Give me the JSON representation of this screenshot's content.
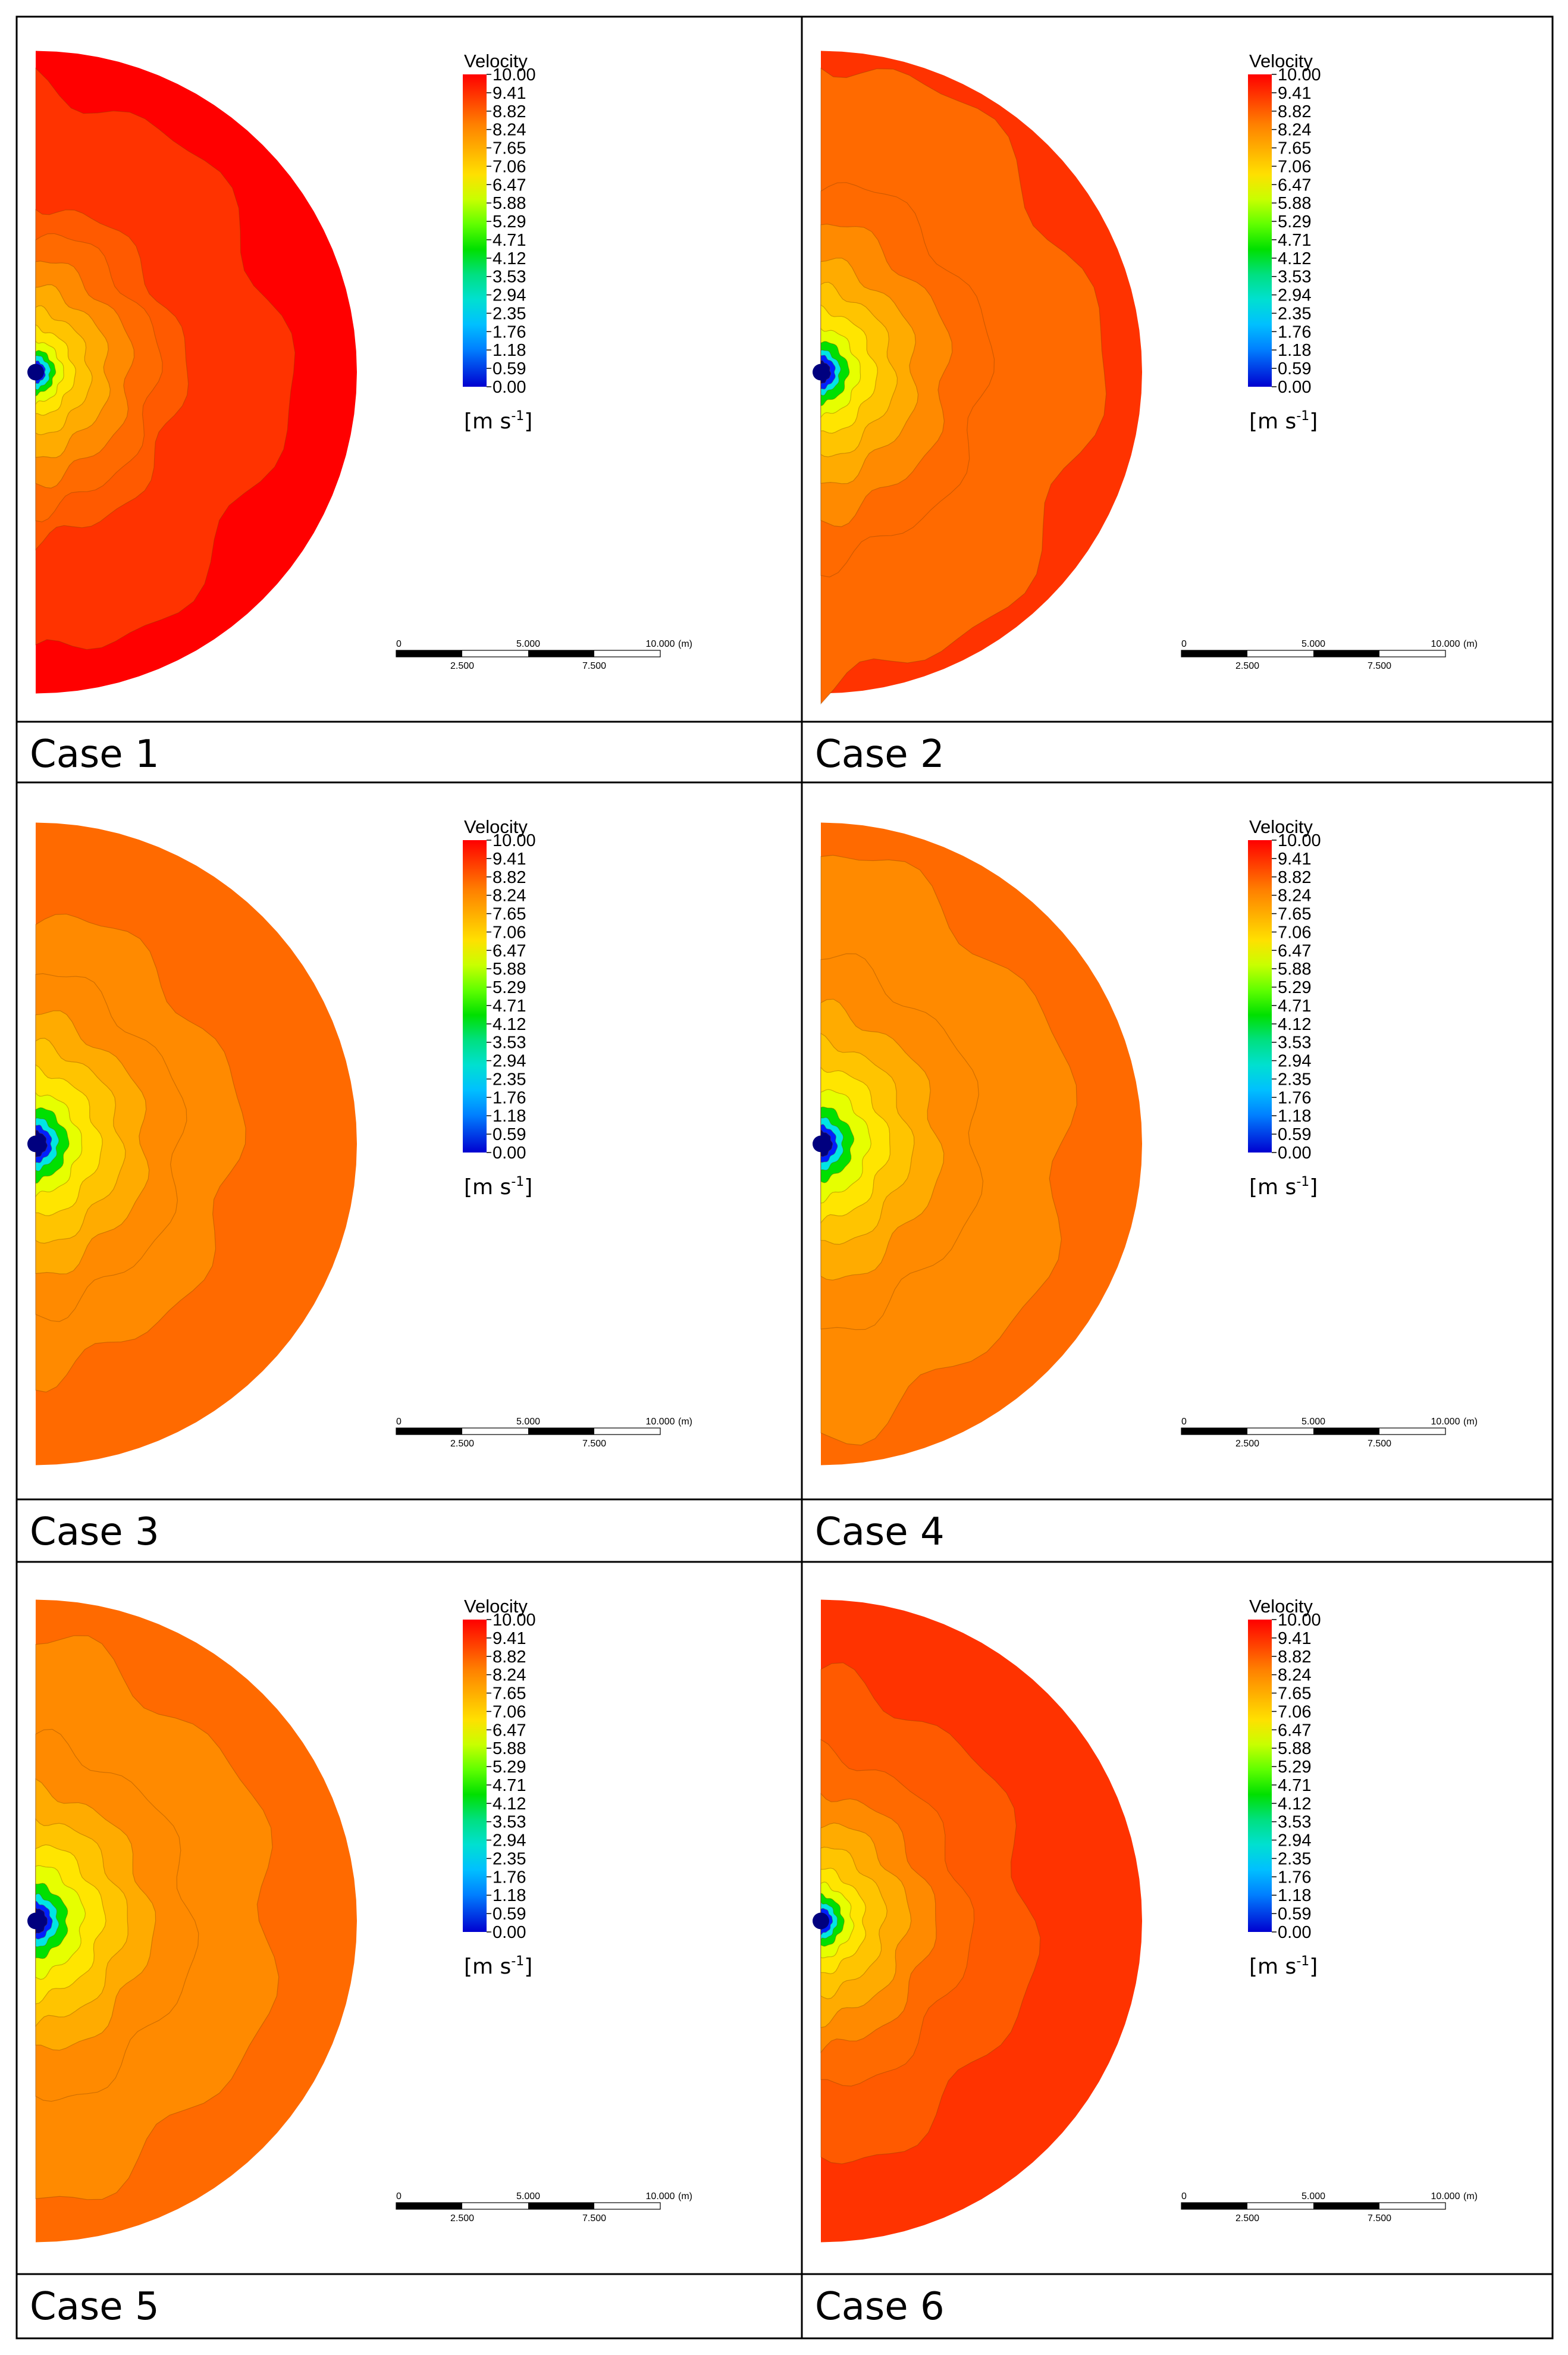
{
  "figure": {
    "legend_title": "Velocity",
    "legend_units": "[m s",
    "legend_units_exp": "-1",
    "legend_units_close": "]",
    "legend_ticks": [
      "10.00",
      "9.41",
      "8.82",
      "8.24",
      "7.65",
      "7.06",
      "6.47",
      "5.88",
      "5.29",
      "4.71",
      "4.12",
      "3.53",
      "2.94",
      "2.35",
      "1.76",
      "1.18",
      "0.59",
      "0.00"
    ],
    "scale_bar_top": [
      "0",
      "5.000",
      "10.000",
      "(m)"
    ],
    "scale_bar_bottom": [
      "2.500",
      "7.500"
    ],
    "colors": {
      "red": "#ff0000",
      "red_orange": "#ff3300",
      "orange_red": "#ff5a00",
      "orange": "#ff6a00",
      "light_orange": "#ff8a00",
      "amber": "#ffab00",
      "yellow_orange": "#ffc400",
      "yellow": "#ffe500",
      "yellow_green": "#e6ff00",
      "green": "#00e000",
      "cyan": "#00e5e5",
      "blue": "#0020ff",
      "navy": "#00007f"
    },
    "colorbar_stops": [
      "#ff0000",
      "#ff4000",
      "#ff8000",
      "#ffb000",
      "#ffe000",
      "#e6ff00",
      "#a0ff00",
      "#40ff00",
      "#00e060",
      "#00e0c0",
      "#00c0ff",
      "#0080ff",
      "#0040ff",
      "#0000e6"
    ]
  },
  "cases": [
    {
      "label": "Case 1",
      "outer_speed": 10.0,
      "second_speed": 9.41
    },
    {
      "label": "Case 2",
      "outer_speed": 9.41,
      "second_speed": 9.41
    },
    {
      "label": "Case 3",
      "outer_speed": 9.41,
      "second_speed": 8.82
    },
    {
      "label": "Case 4",
      "outer_speed": 9.41,
      "second_speed": 8.82
    },
    {
      "label": "Case 5",
      "outer_speed": 9.41,
      "second_speed": 8.82
    },
    {
      "label": "Case 6",
      "outer_speed": 9.7,
      "second_speed": 9.41
    }
  ]
}
